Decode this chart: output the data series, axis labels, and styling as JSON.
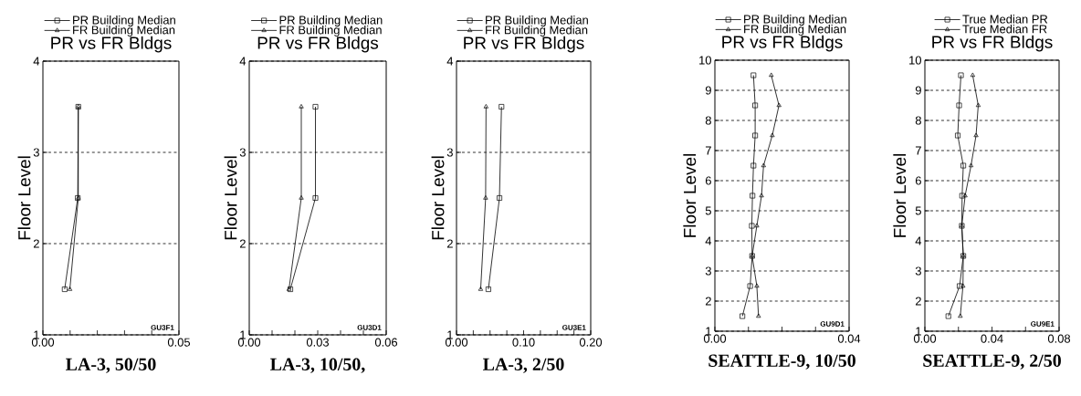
{
  "chart_data": [
    {
      "type": "line",
      "title": "PR vs FR Bldgs",
      "ylabel": "Floor Level",
      "annotations": [
        "GU3F1",
        "LA-3, 50/50"
      ],
      "legend": "top",
      "grid": "y",
      "line_style": "solid",
      "xlim": [
        0,
        0.05
      ],
      "xticks": [
        {
          "value": 0,
          "label": "0.00"
        },
        {
          "value": 0.01,
          "label": null
        },
        {
          "value": 0.02,
          "label": null
        },
        {
          "value": 0.03,
          "label": null
        },
        {
          "value": 0.04,
          "label": null
        },
        {
          "value": 0.05,
          "label": "0.05"
        }
      ],
      "ylim": [
        1,
        4
      ],
      "yticks": [
        1,
        2,
        3,
        4
      ],
      "series": [
        {
          "name": "PR Building Median",
          "color": "#000000",
          "marker": "square",
          "x": [
            0.008,
            0.0128,
            0.013
          ],
          "values": [
            1.5,
            2.5,
            3.5
          ]
        },
        {
          "name": "FR Building Median",
          "color": "#000000",
          "marker": "triangle",
          "x": [
            0.0099,
            0.013,
            0.013
          ],
          "values": [
            1.5,
            2.5,
            3.5
          ]
        }
      ]
    },
    {
      "type": "line",
      "title": "PR vs FR Bldgs",
      "ylabel": "Floor Level",
      "annotations": [
        "GU3D1",
        "LA-3, 10/50,"
      ],
      "legend": "top",
      "grid": "y",
      "line_style": "solid",
      "xlim": [
        0,
        0.06
      ],
      "xticks": [
        {
          "value": 0,
          "label": "0.00"
        },
        {
          "value": 0.01,
          "label": null
        },
        {
          "value": 0.02,
          "label": null
        },
        {
          "value": 0.03,
          "label": "0.03"
        },
        {
          "value": 0.04,
          "label": null
        },
        {
          "value": 0.05,
          "label": null
        },
        {
          "value": 0.06,
          "label": "0.06"
        }
      ],
      "ylim": [
        1,
        4
      ],
      "yticks": [
        1,
        2,
        3,
        4
      ],
      "series": [
        {
          "name": "PR Building Median",
          "color": "#000000",
          "marker": "square",
          "x": [
            0.018,
            0.029,
            0.029
          ],
          "values": [
            1.5,
            2.5,
            3.5
          ]
        },
        {
          "name": "FR Building Median",
          "color": "#000000",
          "marker": "triangle",
          "x": [
            0.0174,
            0.0228,
            0.0228
          ],
          "values": [
            1.5,
            2.5,
            3.5
          ]
        }
      ]
    },
    {
      "type": "line",
      "title": "PR vs FR Bldgs",
      "ylabel": "Floor Level",
      "annotations": [
        "GU3E1",
        "LA-3, 2/50"
      ],
      "legend": "top",
      "grid": "y",
      "line_style": "solid",
      "xlim": [
        0,
        0.2
      ],
      "xticks": [
        {
          "value": 0,
          "label": "0.00"
        },
        {
          "value": 0.025,
          "label": null
        },
        {
          "value": 0.05,
          "label": null
        },
        {
          "value": 0.075,
          "label": null
        },
        {
          "value": 0.1,
          "label": "0.10"
        },
        {
          "value": 0.125,
          "label": null
        },
        {
          "value": 0.15,
          "label": null
        },
        {
          "value": 0.175,
          "label": null
        },
        {
          "value": 0.2,
          "label": "0.20"
        }
      ],
      "ylim": [
        1,
        4
      ],
      "yticks": [
        1,
        2,
        3,
        4
      ],
      "series": [
        {
          "name": "PR Building Median",
          "color": "#000000",
          "marker": "square",
          "x": [
            0.0475,
            0.064,
            0.067
          ],
          "values": [
            1.5,
            2.5,
            3.5
          ]
        },
        {
          "name": "FR Building Median",
          "color": "#000000",
          "marker": "triangle",
          "x": [
            0.036,
            0.0434,
            0.044
          ],
          "values": [
            1.5,
            2.5,
            3.5
          ]
        }
      ]
    },
    {
      "type": "line",
      "title": "PR vs FR Bldgs",
      "ylabel": "Floor Level",
      "annotations": [
        "GU9D1",
        "SEATTLE-9, 10/50"
      ],
      "legend": "top",
      "grid": "y",
      "line_style": "solid",
      "xlim": [
        0,
        0.04
      ],
      "xticks": [
        {
          "value": 0,
          "label": "0.00"
        },
        {
          "value": 0.01,
          "label": null
        },
        {
          "value": 0.02,
          "label": null
        },
        {
          "value": 0.03,
          "label": null
        },
        {
          "value": 0.04,
          "label": "0.04"
        }
      ],
      "ylim": [
        1,
        10
      ],
      "yticks": [
        1,
        2,
        3,
        4,
        5,
        6,
        7,
        8,
        9,
        10
      ],
      "series": [
        {
          "name": "PR Building Median",
          "color": "#000000",
          "marker": "square",
          "x": [
            0.0082,
            0.0105,
            0.0111,
            0.011,
            0.0112,
            0.0115,
            0.012,
            0.012,
            0.0115
          ],
          "values": [
            1.5,
            2.5,
            3.5,
            4.5,
            5.5,
            6.5,
            7.5,
            8.5,
            9.5
          ]
        },
        {
          "name": "FR Building Median",
          "color": "#000000",
          "marker": "triangle",
          "x": [
            0.013,
            0.0125,
            0.0111,
            0.0125,
            0.0139,
            0.0145,
            0.0171,
            0.0191,
            0.0168
          ],
          "values": [
            1.5,
            2.5,
            3.5,
            4.5,
            5.5,
            6.5,
            7.5,
            8.5,
            9.5
          ]
        }
      ]
    },
    {
      "type": "line",
      "title": "PR vs FR Bldgs",
      "ylabel": "Floor Level",
      "annotations": [
        "GU9E1",
        "SEATTLE-9, 2/50"
      ],
      "legend": "top",
      "grid": "y",
      "line_style": "solid",
      "xlim": [
        0,
        0.08
      ],
      "xticks": [
        {
          "value": 0,
          "label": "0.00"
        },
        {
          "value": 0.02,
          "label": null
        },
        {
          "value": 0.04,
          "label": "0.04"
        },
        {
          "value": 0.06,
          "label": null
        },
        {
          "value": 0.08,
          "label": "0.08"
        }
      ],
      "ylim": [
        1,
        10
      ],
      "yticks": [
        1,
        2,
        3,
        4,
        5,
        6,
        7,
        8,
        9,
        10
      ],
      "series": [
        {
          "name": "True Median PR",
          "color": "#000000",
          "marker": "square",
          "x": [
            0.014,
            0.0207,
            0.0229,
            0.022,
            0.0222,
            0.0229,
            0.0196,
            0.0204,
            0.0215
          ],
          "values": [
            1.5,
            2.5,
            3.5,
            4.5,
            5.5,
            6.5,
            7.5,
            8.5,
            9.5
          ]
        },
        {
          "name": "True Median FR",
          "color": "#000000",
          "marker": "triangle",
          "x": [
            0.0211,
            0.0227,
            0.0229,
            0.022,
            0.024,
            0.0275,
            0.0305,
            0.0318,
            0.0285
          ],
          "values": [
            1.5,
            2.5,
            3.5,
            4.5,
            5.5,
            6.5,
            7.5,
            8.5,
            9.5
          ]
        }
      ]
    }
  ]
}
